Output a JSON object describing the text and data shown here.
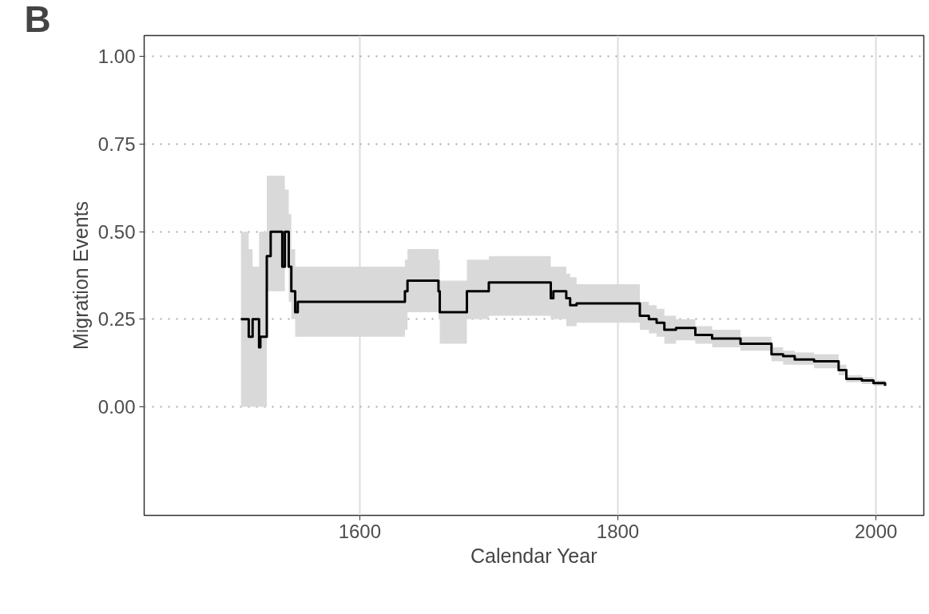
{
  "chart_data": {
    "type": "step",
    "xlabel": "Calendar Year",
    "ylabel": "Migration Events",
    "annotations": [
      "B"
    ],
    "x": [
      1508,
      1514,
      1517,
      1522,
      1523,
      1528,
      1531,
      1540,
      1542,
      1545,
      1547,
      1550,
      1552,
      1635,
      1637,
      1661,
      1662,
      1683,
      1700,
      1748,
      1750,
      1760,
      1763,
      1768,
      1817,
      1824,
      1830,
      1836,
      1845,
      1860,
      1873,
      1895,
      1919,
      1928,
      1937,
      1952,
      1971,
      1977,
      1989,
      1998,
      2007
    ],
    "series": [
      {
        "color": "#000000",
        "values": [
          0.25,
          0.2,
          0.25,
          0.17,
          0.2,
          0.43,
          0.5,
          0.4,
          0.5,
          0.4,
          0.33,
          0.27,
          0.3,
          0.33,
          0.36,
          0.33,
          0.27,
          0.33,
          0.355,
          0.31,
          0.33,
          0.31,
          0.29,
          0.295,
          0.26,
          0.25,
          0.24,
          0.22,
          0.225,
          0.205,
          0.195,
          0.18,
          0.15,
          0.145,
          0.135,
          0.13,
          0.105,
          0.08,
          0.075,
          0.068,
          0.06
        ],
        "lower": [
          0.0,
          0.0,
          0.0,
          0.0,
          0.0,
          0.33,
          0.33,
          0.33,
          0.4,
          0.3,
          0.25,
          0.2,
          0.2,
          0.22,
          0.27,
          0.25,
          0.18,
          0.25,
          0.26,
          0.25,
          0.25,
          0.23,
          0.23,
          0.24,
          0.22,
          0.21,
          0.2,
          0.18,
          0.19,
          0.18,
          0.17,
          0.16,
          0.13,
          0.12,
          0.12,
          0.11,
          0.09,
          0.07,
          0.065,
          0.06,
          0.055
        ],
        "upper": [
          0.5,
          0.45,
          0.4,
          0.5,
          0.5,
          0.66,
          0.66,
          0.66,
          0.62,
          0.55,
          0.45,
          0.4,
          0.4,
          0.42,
          0.45,
          0.42,
          0.36,
          0.42,
          0.43,
          0.4,
          0.4,
          0.38,
          0.37,
          0.35,
          0.3,
          0.29,
          0.28,
          0.26,
          0.25,
          0.23,
          0.22,
          0.2,
          0.17,
          0.16,
          0.155,
          0.15,
          0.12,
          0.09,
          0.085,
          0.075,
          0.065
        ]
      }
    ],
    "xlim": [
      1433,
      2037
    ],
    "ylim": [
      -0.31,
      1.06
    ],
    "xticks": [
      1600,
      1800,
      2000
    ],
    "yticks": [
      {
        "value": 0,
        "label": "0.00"
      },
      {
        "value": 0.25,
        "label": "0.25"
      },
      {
        "value": 0.5,
        "label": "0.50"
      },
      {
        "value": 0.75,
        "label": "0.75"
      },
      {
        "value": 1,
        "label": "1.00"
      }
    ],
    "grid": true,
    "line_style": "solid",
    "marker": "none"
  }
}
